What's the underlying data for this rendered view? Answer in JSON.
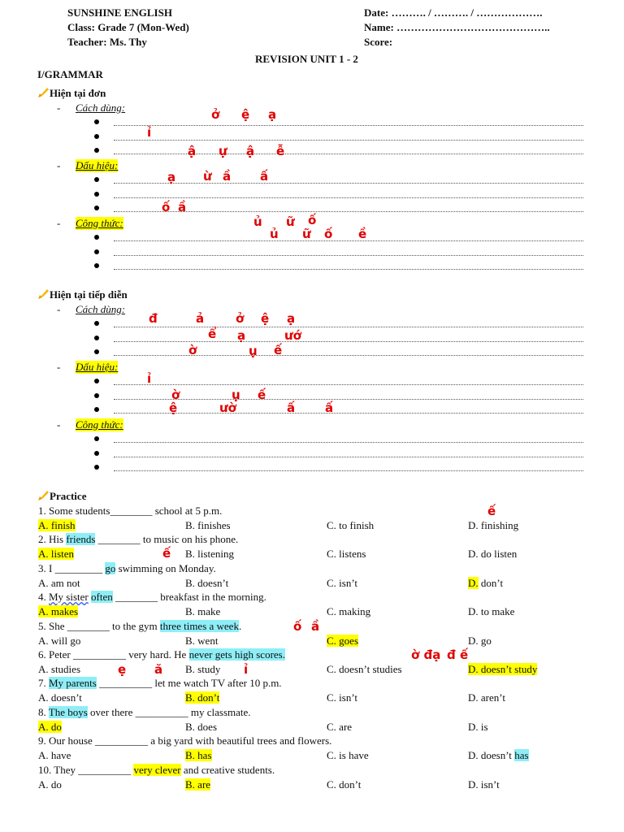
{
  "header": {
    "school": "SUNSHINE ENGLISH",
    "class": "Class: Grade 7 (Mon-Wed)",
    "teacher": "Teacher: Ms. Thy",
    "date": "Date: ………. /  ………. /  ……………….",
    "name": "Name: ……………………………………..",
    "score": "Score:"
  },
  "title": "REVISION UNIT 1 - 2",
  "section": "I/GRAMMAR",
  "grammar": [
    {
      "heading": "Hiện tại đơn",
      "usage": "Cách dùng:",
      "signs": "Dấu hiệu:",
      "formula": "Công thức:"
    },
    {
      "heading": "Hiện tại tiếp diễn",
      "usage": "Cách dùng:",
      "signs": "Dấu hiệu:",
      "formula": "Công thức:"
    }
  ],
  "icon": "writing-hand-icon",
  "highlight_colors": {
    "yellow": "#ffff00",
    "cyan": "#8eeef7"
  },
  "practice_heading": "Practice",
  "questions": [
    {
      "q": [
        {
          "t": "1. Some students________ school at 5 p.m."
        }
      ],
      "opts": [
        [
          {
            "t": "A. finish",
            "hl": "yellow"
          }
        ],
        [
          {
            "t": "B. finishes"
          }
        ],
        [
          {
            "t": "C. to finish"
          }
        ],
        [
          {
            "t": "D. finishing"
          }
        ]
      ]
    },
    {
      "q": [
        {
          "t": "2. His "
        },
        {
          "t": "friends",
          "hl": "cyan"
        },
        {
          "t": " ________ to music on his phone."
        }
      ],
      "opts": [
        [
          {
            "t": "A. listen",
            "hl": "yellow"
          }
        ],
        [
          {
            "t": "B. listening"
          }
        ],
        [
          {
            "t": "C. listens"
          }
        ],
        [
          {
            "t": "D. do listen"
          }
        ]
      ]
    },
    {
      "q": [
        {
          "t": "3. I _________ "
        },
        {
          "t": "go",
          "hl": "cyan"
        },
        {
          "t": " swimming on Monday."
        }
      ],
      "opts": [
        [
          {
            "t": "A. am not"
          }
        ],
        [
          {
            "t": "B. doesn’t"
          }
        ],
        [
          {
            "t": "C. isn’t"
          }
        ],
        [
          {
            "t": "D.",
            "hl": "yellow"
          },
          {
            "t": " don’t"
          }
        ]
      ]
    },
    {
      "q": [
        {
          "t": "4. "
        },
        {
          "t": "My sister",
          "wavy": true
        },
        {
          "t": " "
        },
        {
          "t": "often",
          "hl": "cyan"
        },
        {
          "t": " ________ breakfast in the morning."
        }
      ],
      "opts": [
        [
          {
            "t": "A. makes",
            "hl": "yellow"
          }
        ],
        [
          {
            "t": "B. make"
          }
        ],
        [
          {
            "t": "C. making"
          }
        ],
        [
          {
            "t": "D. to make"
          }
        ]
      ]
    },
    {
      "q": [
        {
          "t": "5. She ________ to the gym "
        },
        {
          "t": "three times a week",
          "hl": "cyan"
        },
        {
          "t": "."
        }
      ],
      "opts": [
        [
          {
            "t": "A. will go"
          }
        ],
        [
          {
            "t": "B. went"
          }
        ],
        [
          {
            "t": "C. goes",
            "hl": "yellow"
          }
        ],
        [
          {
            "t": "D. go"
          }
        ]
      ]
    },
    {
      "q": [
        {
          "t": "6. Peter __________ very hard. He "
        },
        {
          "t": "never gets high scores.",
          "hl": "cyan"
        }
      ],
      "opts": [
        [
          {
            "t": "A. studies"
          }
        ],
        [
          {
            "t": "B. study"
          }
        ],
        [
          {
            "t": "C. doesn’t studies"
          }
        ],
        [
          {
            "t": "D. doesn’t study",
            "hl": "yellow"
          }
        ]
      ]
    },
    {
      "q": [
        {
          "t": "7. "
        },
        {
          "t": "My parents",
          "hl": "cyan"
        },
        {
          "t": " __________ let me watch TV after 10 p.m."
        }
      ],
      "opts": [
        [
          {
            "t": "A. doesn’t"
          }
        ],
        [
          {
            "t": "B. don’t",
            "hl": "yellow"
          }
        ],
        [
          {
            "t": "C. isn’t"
          }
        ],
        [
          {
            "t": "D. aren’t"
          }
        ]
      ]
    },
    {
      "q": [
        {
          "t": "8. "
        },
        {
          "t": "The boys",
          "hl": "cyan"
        },
        {
          "t": " over there __________ my classmate."
        }
      ],
      "opts": [
        [
          {
            "t": "A. do",
            "hl": "yellow"
          }
        ],
        [
          {
            "t": "B. does"
          }
        ],
        [
          {
            "t": "C. are"
          }
        ],
        [
          {
            "t": "D. is"
          }
        ]
      ]
    },
    {
      "q": [
        {
          "t": "9. Our house __________ a big yard with beautiful trees and flowers."
        }
      ],
      "opts": [
        [
          {
            "t": "A. have"
          }
        ],
        [
          {
            "t": "B. has",
            "hl": "yellow"
          }
        ],
        [
          {
            "t": "C. is have"
          }
        ],
        [
          {
            "t": "D. doesn’t "
          },
          {
            "t": "has",
            "hl": "cyan"
          }
        ]
      ]
    },
    {
      "q": [
        {
          "t": "10. They __________ "
        },
        {
          "t": "very clever",
          "hl": "yellow"
        },
        {
          "t": " and creative students."
        }
      ],
      "opts": [
        [
          {
            "t": "A. do"
          }
        ],
        [
          {
            "t": "B. are",
            "hl": "yellow"
          }
        ],
        [
          {
            "t": "C. don’t"
          }
        ],
        [
          {
            "t": "D. isn’t"
          }
        ]
      ]
    }
  ],
  "annotations": [
    "ở",
    "ệ",
    "ạ",
    "ỉ",
    "ậ",
    "ự",
    "ậ",
    "ễ",
    "ạ",
    "ừ",
    "ầ",
    "ấ",
    "ố",
    "ầ",
    "ủ",
    "ữ",
    "ố",
    "ủ",
    "ữ",
    "ố",
    "ề",
    "đ",
    "ả",
    "ở",
    "ệ",
    "ạ",
    "ể",
    "ạ",
    "ướ",
    "ờ",
    "ụ",
    "ế",
    "ỉ",
    "ờ",
    "ụ",
    "ế",
    "ệ",
    "ườ",
    "ấ",
    "ấ",
    "ế",
    "ế",
    "ố",
    "ầ",
    "ờ đạ",
    "đ ế",
    "ă",
    "ỉ",
    "ẹ"
  ]
}
